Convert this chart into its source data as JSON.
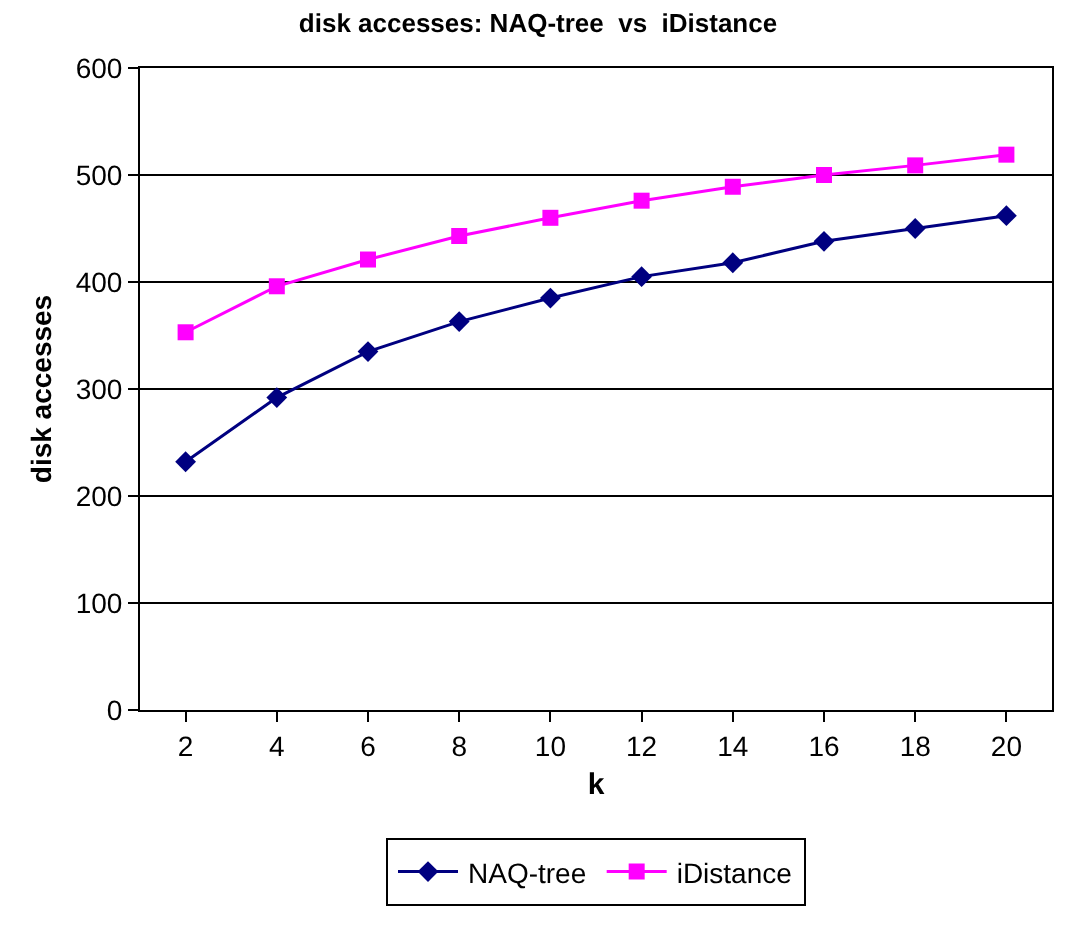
{
  "chart_data": {
    "type": "line",
    "title": "disk accesses: NAQ-tree  vs  iDistance",
    "xlabel": "k",
    "ylabel": "disk accesses",
    "x": [
      2,
      4,
      6,
      8,
      10,
      12,
      14,
      16,
      18,
      20
    ],
    "xlim": [
      1,
      21
    ],
    "xticks": [
      2,
      4,
      6,
      8,
      10,
      12,
      14,
      16,
      18,
      20
    ],
    "ylim": [
      0,
      600
    ],
    "yticks": [
      0,
      100,
      200,
      300,
      400,
      500,
      600
    ],
    "grid": "y",
    "legend": "bottom",
    "series": [
      {
        "name": "NAQ-tree",
        "color": "#000080",
        "marker": "diamond",
        "values": [
          232,
          292,
          335,
          363,
          385,
          405,
          418,
          438,
          450,
          462
        ]
      },
      {
        "name": "iDistance",
        "color": "#ff00ff",
        "marker": "square",
        "values": [
          353,
          396,
          421,
          443,
          460,
          476,
          489,
          500,
          509,
          519
        ]
      }
    ]
  }
}
